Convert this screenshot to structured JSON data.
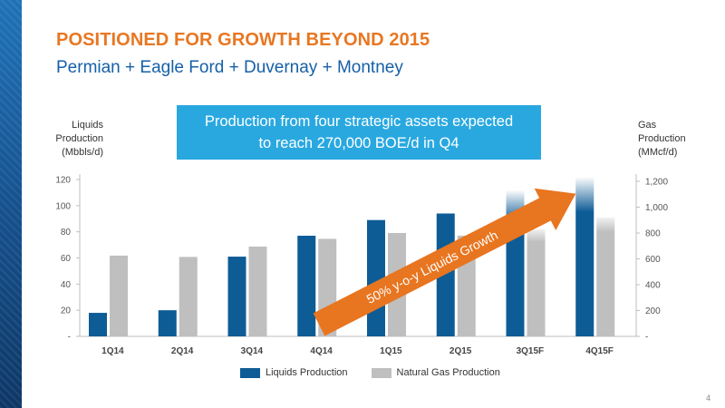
{
  "slide": {
    "title": "POSITIONED FOR GROWTH BEYOND 2015",
    "subtitle": "Permian + Eagle Ford + Duvernay + Montney",
    "callout": [
      "Production from four strategic assets expected",
      "to reach 270,000 BOE/d in Q4"
    ],
    "arrow_label": "50% y-o-y Liquids Growth",
    "page_number": "4"
  },
  "colors": {
    "title": "#e87722",
    "subtitle": "#1560a8",
    "callout": "#29a8e0",
    "liquids": "#0e5c96",
    "gas": "#bfbfbf",
    "arrow": "#e8751f"
  },
  "chart_data": {
    "type": "bar",
    "ylabel_left": [
      "Liquids",
      "Production",
      "(Mbbls/d)"
    ],
    "ylabel_right": [
      "Gas",
      "Production",
      "(MMcf/d)"
    ],
    "categories": [
      "1Q14",
      "2Q14",
      "3Q14",
      "4Q14",
      "1Q15",
      "2Q15",
      "3Q15F",
      "4Q15F"
    ],
    "series": [
      {
        "name": "Liquids Production",
        "axis": "left",
        "values": [
          18,
          20,
          61,
          77,
          89,
          94,
          112,
          122
        ]
      },
      {
        "name": "Natural Gas Production",
        "axis": "right",
        "values": [
          625,
          615,
          695,
          755,
          800,
          780,
          830,
          920
        ]
      }
    ],
    "ylim_left": [
      0,
      120
    ],
    "ylim_right": [
      0,
      1250
    ],
    "yticks_left": [
      "-",
      "20",
      "40",
      "60",
      "80",
      "100",
      "120"
    ],
    "yticks_right": [
      "-",
      "200",
      "400",
      "600",
      "800",
      "1,000",
      "1,200"
    ],
    "legend_position": "bottom",
    "grid": false
  }
}
